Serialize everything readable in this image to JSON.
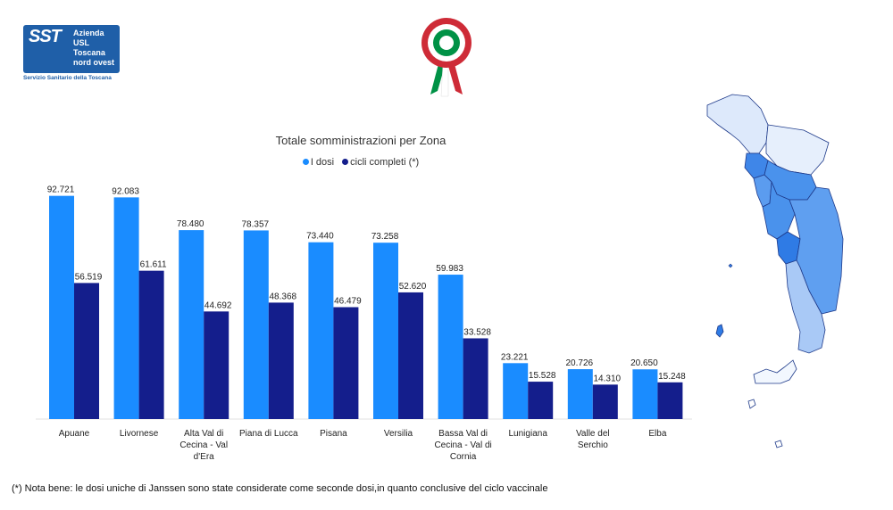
{
  "logo": {
    "sst": "SST",
    "lines": [
      "Azienda",
      "USL",
      "Toscana",
      "nord ovest"
    ],
    "subtitle": "Servizio Sanitario della Toscana"
  },
  "colors": {
    "series1": "#1a8cff",
    "series2": "#141e8c",
    "map_border": "#1e3a8a"
  },
  "chart_data": {
    "type": "bar",
    "title": "Totale somministrazioni per Zona",
    "legend_position": "top-center",
    "categories": [
      [
        "Apuane"
      ],
      [
        "Livornese"
      ],
      [
        "Alta Val di",
        "Cecina - Val",
        "d'Era"
      ],
      [
        "Piana di Lucca"
      ],
      [
        "Pisana"
      ],
      [
        "Versilia"
      ],
      [
        "Bassa Val di",
        "Cecina - Val di",
        "Cornia"
      ],
      [
        "Lunigiana"
      ],
      [
        "Valle del",
        "Serchio"
      ],
      [
        "Elba"
      ]
    ],
    "series": [
      {
        "name": "I dosi",
        "color": "#1a8cff",
        "values": [
          92721,
          92083,
          78480,
          78357,
          73440,
          73258,
          59983,
          23221,
          20726,
          20650
        ],
        "labels": [
          "92.721",
          "92.083",
          "78.480",
          "78.357",
          "73.440",
          "73.258",
          "59.983",
          "23.221",
          "20.726",
          "20.650"
        ]
      },
      {
        "name": "cicli completi (*)",
        "color": "#141e8c",
        "values": [
          56519,
          61611,
          44692,
          48368,
          46479,
          52620,
          33528,
          15528,
          14310,
          15248
        ],
        "labels": [
          "56.519",
          "61.611",
          "44.692",
          "48.368",
          "46.479",
          "52.620",
          "33.528",
          "15.528",
          "14.310",
          "15.248"
        ]
      }
    ],
    "ylim": [
      0,
      100000
    ],
    "grid": false
  },
  "footnote": "(*) Nota bene: le dosi uniche di Janssen sono state considerate come seconde dosi,in quanto conclusive del ciclo vaccinale"
}
